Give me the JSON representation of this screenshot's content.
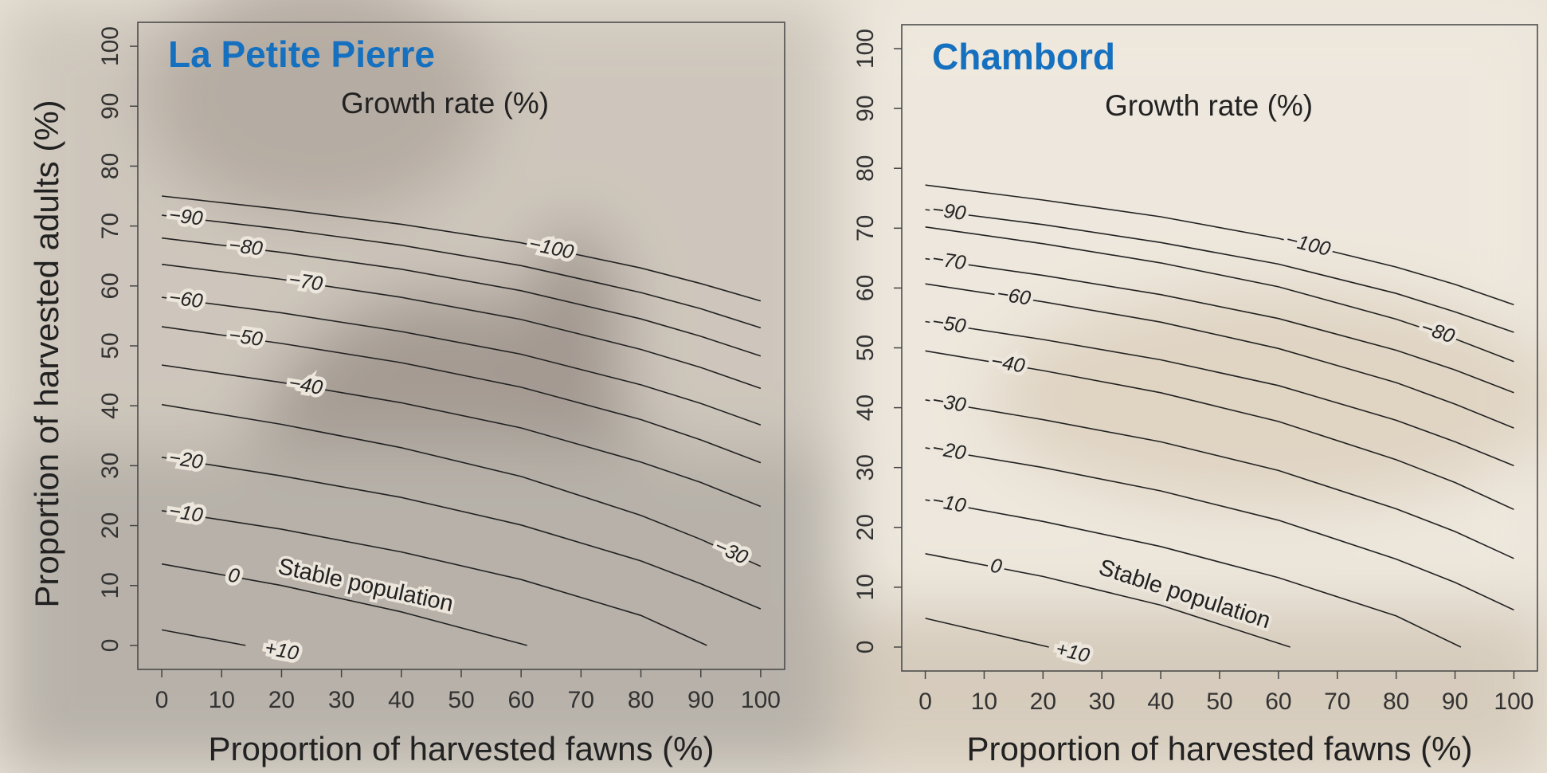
{
  "chart_data": [
    {
      "type": "contour",
      "title": "La Petite Pierre",
      "subtitle": "Growth rate (%)",
      "annotation": "Stable population",
      "x_label": "Proportion of harvested fawns (%)",
      "y_label": "Proportion of harvested adults (%)",
      "xlim": [
        -4,
        104
      ],
      "ylim": [
        -4,
        104
      ],
      "xticks": [
        0,
        10,
        20,
        30,
        40,
        50,
        60,
        70,
        80,
        90,
        100
      ],
      "yticks": [
        0,
        10,
        20,
        30,
        40,
        50,
        60,
        70,
        80,
        90,
        100
      ],
      "series": [
        {
          "name": "−100",
          "color": "#222222",
          "x": [
            0,
            20,
            40,
            60,
            80,
            90,
            100
          ],
          "values": [
            75,
            72.8,
            70.3,
            67.2,
            63.0,
            60.4,
            57.5
          ]
        },
        {
          "name": "−90",
          "color": "#222222",
          "x": [
            0,
            20,
            40,
            60,
            80,
            90,
            100
          ],
          "values": [
            71.8,
            69.5,
            66.8,
            63.4,
            58.9,
            56.2,
            53.0
          ]
        },
        {
          "name": "−80",
          "color": "#222222",
          "x": [
            0,
            20,
            40,
            60,
            80,
            90,
            100
          ],
          "values": [
            68.0,
            65.6,
            62.8,
            59.2,
            54.5,
            51.6,
            48.3
          ]
        },
        {
          "name": "−70",
          "color": "#222222",
          "x": [
            0,
            20,
            40,
            60,
            80,
            90,
            100
          ],
          "values": [
            63.6,
            61.1,
            58.1,
            54.4,
            49.4,
            46.4,
            42.9
          ]
        },
        {
          "name": "−60",
          "color": "#222222",
          "x": [
            0,
            20,
            40,
            60,
            80,
            90,
            100
          ],
          "values": [
            58.1,
            55.5,
            52.4,
            48.6,
            43.5,
            40.4,
            36.8
          ]
        },
        {
          "name": "−50",
          "color": "#222222",
          "x": [
            0,
            20,
            40,
            60,
            80,
            90,
            100
          ],
          "values": [
            53.2,
            50.4,
            47.2,
            43.1,
            37.7,
            34.3,
            30.5
          ]
        },
        {
          "name": "−40",
          "color": "#222222",
          "x": [
            0,
            20,
            40,
            60,
            80,
            90,
            100
          ],
          "values": [
            46.8,
            43.9,
            40.5,
            36.3,
            30.6,
            27.2,
            23.2
          ]
        },
        {
          "name": "−30",
          "color": "#222222",
          "x": [
            0,
            20,
            40,
            60,
            80,
            90,
            100
          ],
          "values": [
            40.2,
            36.9,
            33.0,
            28.2,
            21.7,
            17.7,
            13.2
          ]
        },
        {
          "name": "−20",
          "color": "#222222",
          "x": [
            0,
            20,
            40,
            60,
            80,
            90,
            100
          ],
          "values": [
            31.4,
            28.3,
            24.7,
            20.1,
            14.1,
            10.3,
            6.1
          ]
        },
        {
          "name": "−10",
          "color": "#222222",
          "x": [
            0,
            20,
            40,
            60,
            80,
            91
          ],
          "values": [
            22.5,
            19.4,
            15.6,
            11.0,
            5.0,
            0
          ]
        },
        {
          "name": "0",
          "color": "#222222",
          "x": [
            0,
            20,
            40,
            61
          ],
          "values": [
            13.6,
            10.0,
            5.6,
            0
          ]
        },
        {
          "name": "+10",
          "color": "#222222",
          "x": [
            0,
            14
          ],
          "values": [
            2.6,
            0
          ]
        }
      ]
    },
    {
      "type": "contour",
      "title": "Chambord",
      "subtitle": "Growth rate (%)",
      "annotation": "Stable population",
      "x_label": "Proportion of harvested fawns (%)",
      "xlim": [
        -4,
        104
      ],
      "ylim": [
        -4,
        104
      ],
      "xticks": [
        0,
        10,
        20,
        30,
        40,
        50,
        60,
        70,
        80,
        90,
        100
      ],
      "yticks": [
        0,
        10,
        20,
        30,
        40,
        50,
        60,
        70,
        80,
        90,
        100
      ],
      "series": [
        {
          "name": "−100",
          "color": "#222222",
          "x": [
            0,
            20,
            40,
            60,
            80,
            90,
            100
          ],
          "values": [
            77.2,
            74.7,
            71.9,
            68.3,
            63.5,
            60.6,
            57.2
          ]
        },
        {
          "name": "−90",
          "color": "#222222",
          "x": [
            0,
            20,
            40,
            60,
            80,
            90,
            100
          ],
          "values": [
            73.1,
            70.6,
            67.6,
            64.0,
            59.1,
            56.0,
            52.6
          ]
        },
        {
          "name": "−80",
          "color": "#222222",
          "x": [
            0,
            20,
            40,
            60,
            80,
            90,
            100
          ],
          "values": [
            70.2,
            67.4,
            64.2,
            60.2,
            54.8,
            51.5,
            47.7
          ]
        },
        {
          "name": "−70",
          "color": "#222222",
          "x": [
            0,
            20,
            40,
            60,
            80,
            90,
            100
          ],
          "values": [
            64.9,
            62.1,
            58.9,
            54.9,
            49.6,
            46.3,
            42.5
          ]
        },
        {
          "name": "−60",
          "color": "#222222",
          "x": [
            0,
            20,
            40,
            60,
            80,
            90,
            100
          ],
          "values": [
            60.7,
            57.7,
            54.3,
            49.9,
            44.2,
            40.6,
            36.6
          ]
        },
        {
          "name": "−50",
          "color": "#222222",
          "x": [
            0,
            20,
            40,
            60,
            80,
            90,
            100
          ],
          "values": [
            54.4,
            51.4,
            48.0,
            43.7,
            37.9,
            34.3,
            30.3
          ]
        },
        {
          "name": "−40",
          "color": "#222222",
          "x": [
            0,
            20,
            40,
            60,
            80,
            90,
            100
          ],
          "values": [
            49.5,
            46.2,
            42.5,
            37.7,
            31.3,
            27.5,
            23.0
          ]
        },
        {
          "name": "−30",
          "color": "#222222",
          "x": [
            0,
            20,
            40,
            60,
            80,
            90,
            100
          ],
          "values": [
            41.3,
            38.0,
            34.3,
            29.5,
            23.1,
            19.3,
            14.8
          ]
        },
        {
          "name": "−20",
          "color": "#222222",
          "x": [
            0,
            20,
            40,
            60,
            80,
            90,
            100
          ],
          "values": [
            33.3,
            30.0,
            26.1,
            21.2,
            14.7,
            10.8,
            6.2
          ]
        },
        {
          "name": "−10",
          "color": "#222222",
          "x": [
            0,
            20,
            40,
            60,
            80,
            91
          ],
          "values": [
            24.6,
            21.0,
            16.8,
            11.6,
            5.2,
            0
          ]
        },
        {
          "name": "0",
          "color": "#222222",
          "x": [
            0,
            20,
            40,
            62
          ],
          "values": [
            15.6,
            11.8,
            7.0,
            0
          ]
        },
        {
          "name": "+10",
          "color": "#222222",
          "x": [
            0,
            21
          ],
          "values": [
            4.8,
            0
          ]
        }
      ]
    }
  ]
}
